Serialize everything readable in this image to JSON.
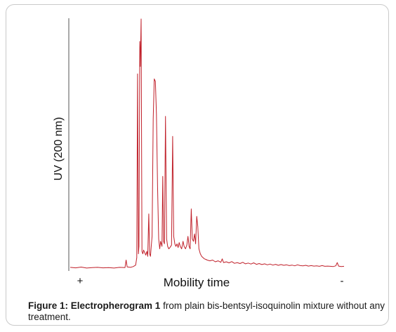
{
  "caption": {
    "figure_label": "Figure 1:",
    "title": "Electropherogram 1",
    "text": " from plain bis-bentsyl-isoquinolin mixture without any treatment."
  },
  "colors": {
    "trace": "#c0202a",
    "axis": "#555555",
    "frame": "#c9c9c9"
  },
  "chart_data": {
    "type": "line",
    "title": "",
    "xlabel": "Mobility time",
    "ylabel": "UV (200 nm)",
    "x_end_labels": {
      "left": "+",
      "right": "-"
    },
    "xlim": [
      0,
      100
    ],
    "ylim": [
      0,
      100
    ],
    "grid": false,
    "legend": "none",
    "series": [
      {
        "values": [
          [
            0,
            0.6
          ],
          [
            2,
            0.4
          ],
          [
            4,
            0.7
          ],
          [
            6,
            0.3
          ],
          [
            8,
            0.5
          ],
          [
            10,
            0.6
          ],
          [
            12,
            0.4
          ],
          [
            14,
            0.5
          ],
          [
            16,
            0.3
          ],
          [
            18,
            0.6
          ],
          [
            20,
            0.5
          ],
          [
            20.4,
            3.5
          ],
          [
            20.8,
            0.8
          ],
          [
            22,
            0.6
          ],
          [
            23,
            0.9
          ],
          [
            23.9,
            1.5
          ],
          [
            24.3,
            4.5
          ],
          [
            24.6,
            78
          ],
          [
            24.9,
            6
          ],
          [
            25.1,
            9
          ],
          [
            25.4,
            91
          ],
          [
            25.6,
            81
          ],
          [
            25.9,
            100
          ],
          [
            26.2,
            7
          ],
          [
            26.5,
            6
          ],
          [
            26.8,
            7.5
          ],
          [
            27.2,
            6.5
          ],
          [
            27.6,
            5.5
          ],
          [
            28.0,
            7
          ],
          [
            28.3,
            5
          ],
          [
            28.7,
            22
          ],
          [
            29.0,
            6
          ],
          [
            29.3,
            5
          ],
          [
            29.6,
            9
          ],
          [
            29.9,
            13
          ],
          [
            30.3,
            60
          ],
          [
            30.7,
            76
          ],
          [
            31.1,
            75
          ],
          [
            31.5,
            62
          ],
          [
            31.9,
            33
          ],
          [
            32.3,
            12
          ],
          [
            32.7,
            8
          ],
          [
            33.0,
            11
          ],
          [
            33.5,
            9
          ],
          [
            33.8,
            37
          ],
          [
            34.1,
            11
          ],
          [
            34.4,
            10
          ],
          [
            34.8,
            61
          ],
          [
            35.2,
            12
          ],
          [
            35.6,
            9
          ],
          [
            36.0,
            8
          ],
          [
            36.4,
            8.5
          ],
          [
            37.0,
            9.5
          ],
          [
            37.4,
            53
          ],
          [
            37.8,
            13
          ],
          [
            38.2,
            10
          ],
          [
            38.6,
            9
          ],
          [
            39.0,
            10
          ],
          [
            39.4,
            8.5
          ],
          [
            39.8,
            10.5
          ],
          [
            40.2,
            9
          ],
          [
            40.7,
            8
          ],
          [
            41.2,
            11
          ],
          [
            41.6,
            9
          ],
          [
            42.1,
            8
          ],
          [
            42.6,
            9.5
          ],
          [
            43.0,
            13
          ],
          [
            43.4,
            9
          ],
          [
            43.8,
            8
          ],
          [
            44.2,
            24
          ],
          [
            44.6,
            12
          ],
          [
            45.0,
            11
          ],
          [
            45.4,
            14
          ],
          [
            45.8,
            10
          ],
          [
            46.2,
            21
          ],
          [
            46.6,
            17
          ],
          [
            47.0,
            8
          ],
          [
            47.5,
            6
          ],
          [
            48.0,
            5
          ],
          [
            48.5,
            4.5
          ],
          [
            49.0,
            4
          ],
          [
            49.5,
            3.8
          ],
          [
            50.0,
            3.5
          ],
          [
            51.0,
            3.2
          ],
          [
            52,
            3.5
          ],
          [
            53,
            2.8
          ],
          [
            54,
            3.2
          ],
          [
            55,
            2.6
          ],
          [
            55.5,
            4
          ],
          [
            56,
            2.5
          ],
          [
            57,
            2.8
          ],
          [
            58,
            2.4
          ],
          [
            59,
            2.9
          ],
          [
            60,
            2.2
          ],
          [
            61,
            2.5
          ],
          [
            62,
            2.1
          ],
          [
            63,
            2.6
          ],
          [
            64,
            2
          ],
          [
            65,
            2.3
          ],
          [
            66,
            1.9
          ],
          [
            67,
            2.4
          ],
          [
            68,
            1.8
          ],
          [
            69,
            2.1
          ],
          [
            70,
            1.7
          ],
          [
            71,
            2
          ],
          [
            72,
            1.6
          ],
          [
            73,
            1.9
          ],
          [
            74,
            1.5
          ],
          [
            75,
            1.8
          ],
          [
            76,
            1.4
          ],
          [
            77,
            1.7
          ],
          [
            78,
            1.4
          ],
          [
            79,
            1.6
          ],
          [
            80,
            1.3
          ],
          [
            81,
            1.5
          ],
          [
            82,
            1.2
          ],
          [
            83,
            1.6
          ],
          [
            84,
            1.3
          ],
          [
            85,
            1.2
          ],
          [
            86,
            1.4
          ],
          [
            87,
            1.1
          ],
          [
            88,
            1.3
          ],
          [
            89,
            1.1
          ],
          [
            90,
            1.2
          ],
          [
            91,
            1
          ],
          [
            92,
            1.3
          ],
          [
            93,
            1
          ],
          [
            94,
            1.1
          ],
          [
            95,
            1
          ],
          [
            96,
            0.9
          ],
          [
            97,
            1.2
          ],
          [
            97.5,
            2.5
          ],
          [
            98,
            1.1
          ],
          [
            99,
            0.9
          ],
          [
            100,
            1
          ]
        ]
      }
    ]
  }
}
